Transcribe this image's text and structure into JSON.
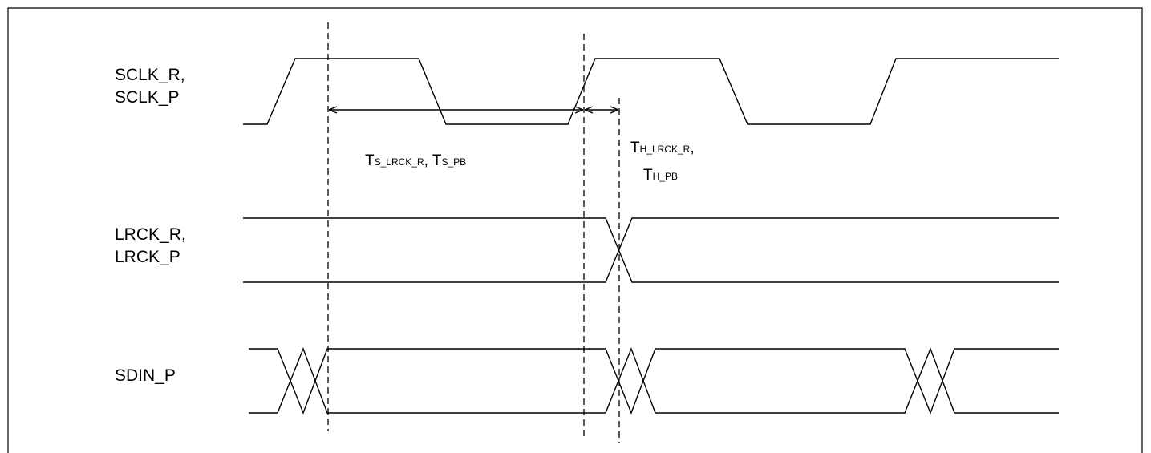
{
  "signals": {
    "sclk": {
      "line1": "SCLK_R,",
      "line2": "SCLK_P"
    },
    "lrck": {
      "line1": "LRCK_R,",
      "line2": "LRCK_P"
    },
    "sdin": {
      "line1": "SDIN_P"
    }
  },
  "timing": {
    "setup": {
      "t1": "T",
      "s1": "S_LRCK_R",
      "sep": ", ",
      "t2": "T",
      "s2": "S_PB"
    },
    "hold": {
      "t1": "T",
      "s1": "H_LRCK_R",
      "sep": ",",
      "t2": "T",
      "s2": "H_PB"
    }
  }
}
